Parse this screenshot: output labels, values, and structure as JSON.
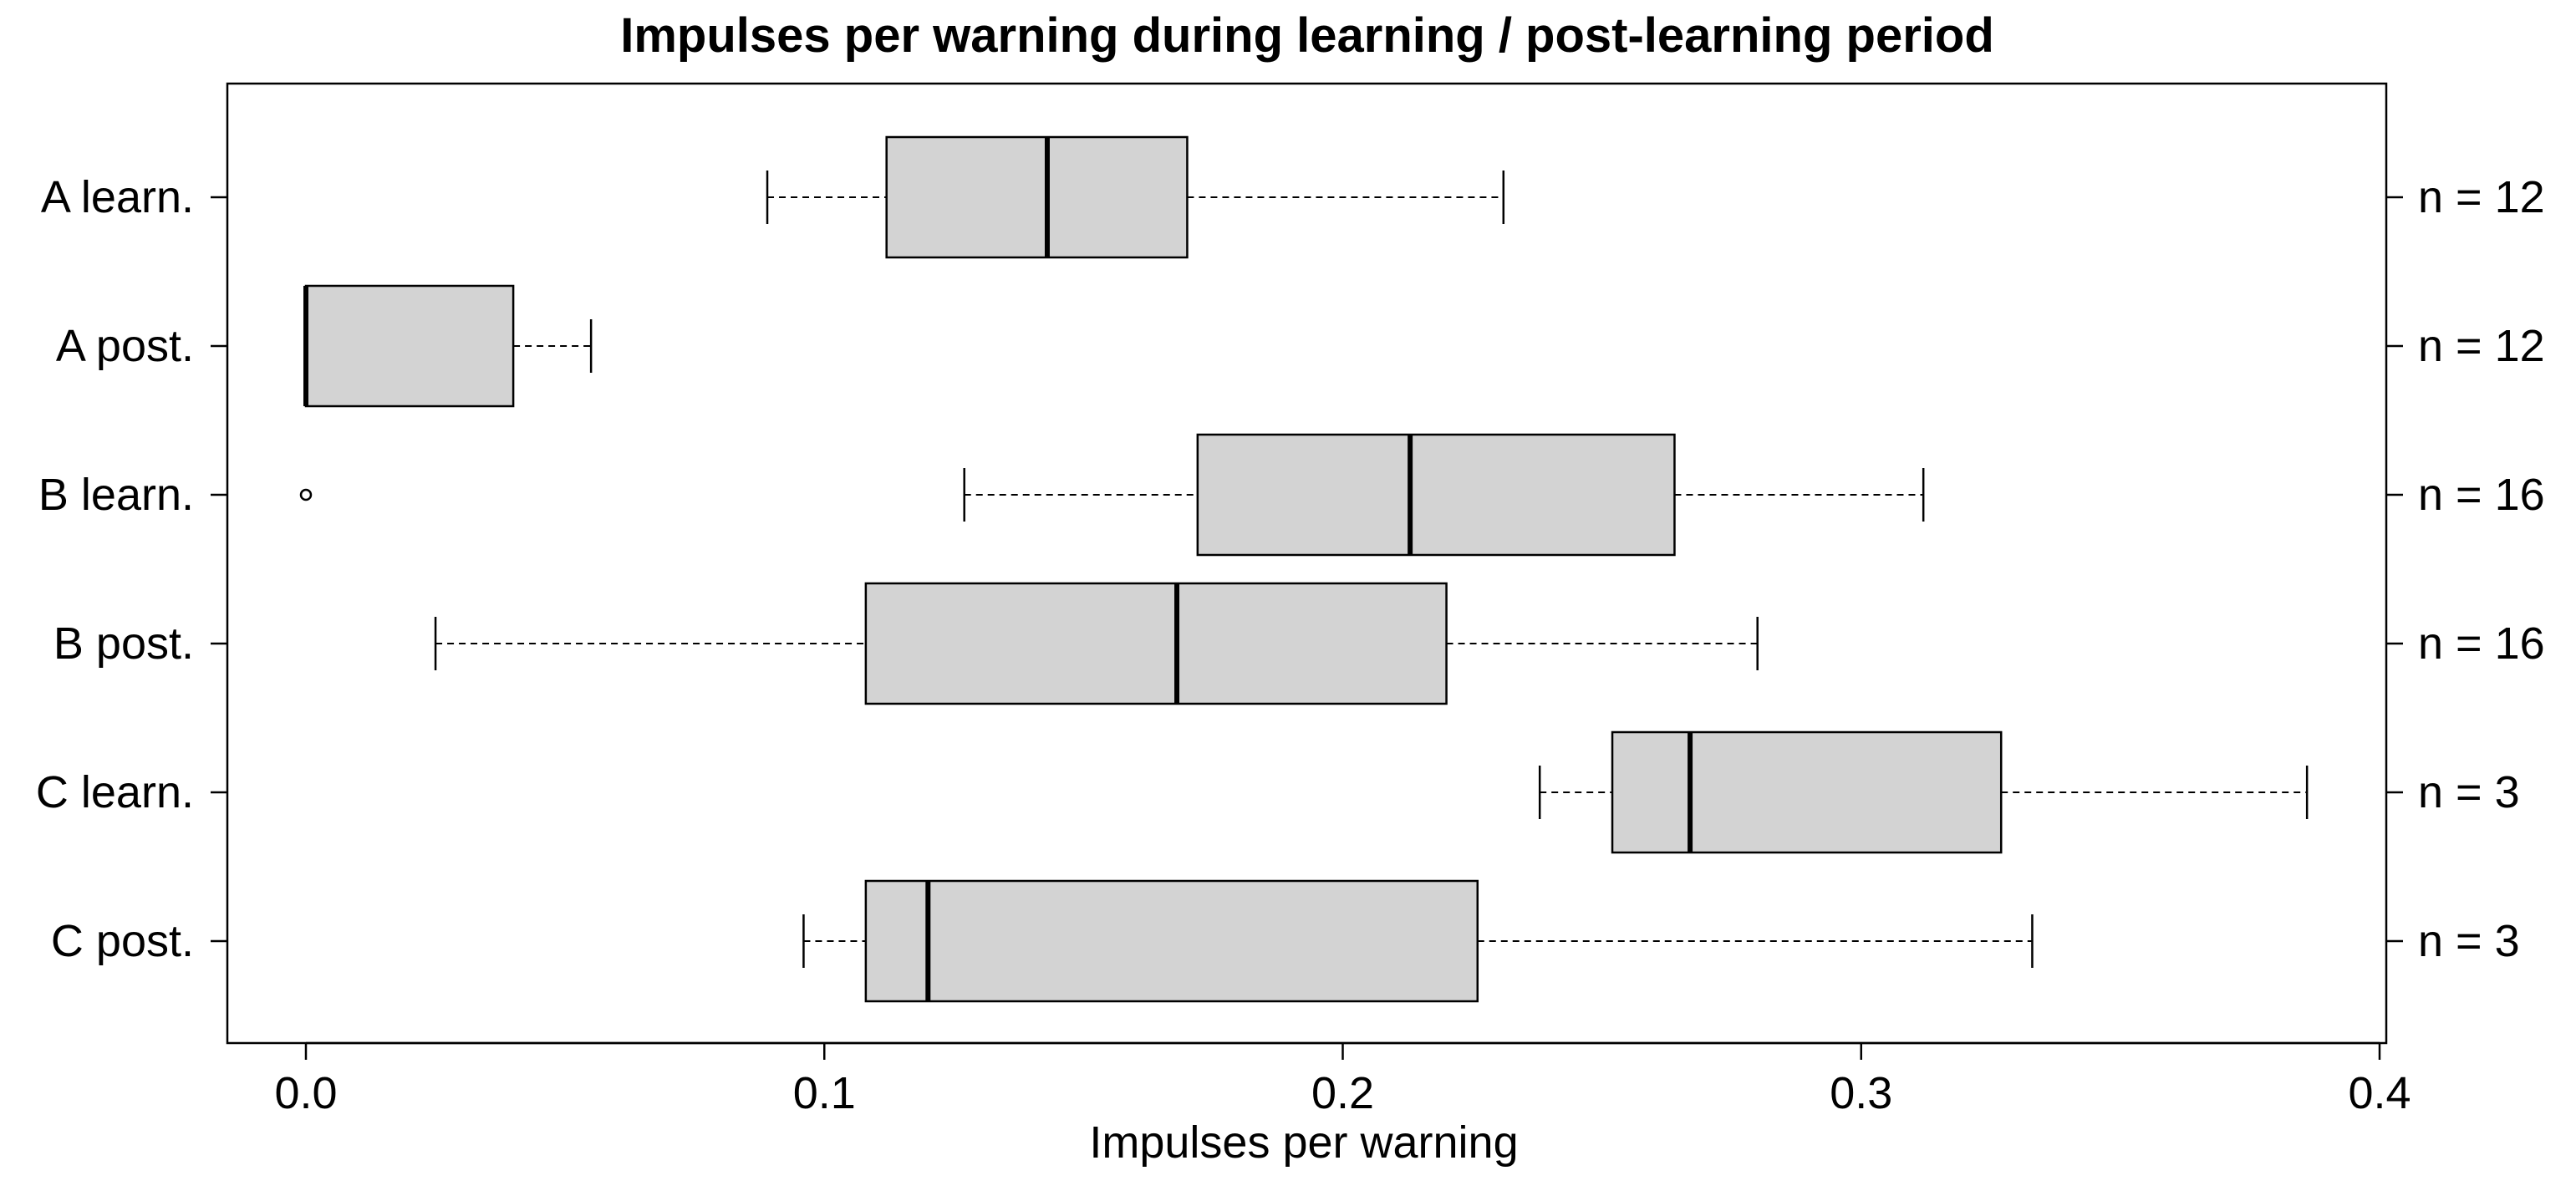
{
  "chart_data": {
    "type": "boxplot",
    "orientation": "horizontal",
    "title": "Impulses per warning during learning / post-learning period",
    "xlabel": "Impulses per warning",
    "ylabel": "",
    "xlim": [
      0.0,
      0.4
    ],
    "x_ticks": [
      0.0,
      0.1,
      0.2,
      0.3,
      0.4
    ],
    "x_tick_labels": [
      "0.0",
      "0.1",
      "0.2",
      "0.3",
      "0.4"
    ],
    "categories": [
      "A learn.",
      "A post.",
      "B learn.",
      "B post.",
      "C learn.",
      "C post."
    ],
    "right_labels": [
      "n = 12",
      "n = 12",
      "n = 16",
      "n = 16",
      "n = 3",
      "n = 3"
    ],
    "boxes": [
      {
        "label": "A learn.",
        "whisker_low": 0.089,
        "q1": 0.112,
        "median": 0.143,
        "q3": 0.17,
        "whisker_high": 0.231,
        "outliers": []
      },
      {
        "label": "A post.",
        "whisker_low": 0.0,
        "q1": 0.0,
        "median": 0.0,
        "q3": 0.04,
        "whisker_high": 0.055,
        "outliers": []
      },
      {
        "label": "B learn.",
        "whisker_low": 0.127,
        "q1": 0.172,
        "median": 0.213,
        "q3": 0.264,
        "whisker_high": 0.312,
        "outliers": [
          0.0
        ]
      },
      {
        "label": "B post.",
        "whisker_low": 0.025,
        "q1": 0.108,
        "median": 0.168,
        "q3": 0.22,
        "whisker_high": 0.28,
        "outliers": []
      },
      {
        "label": "C learn.",
        "whisker_low": 0.238,
        "q1": 0.252,
        "median": 0.267,
        "q3": 0.327,
        "whisker_high": 0.386,
        "outliers": []
      },
      {
        "label": "C post.",
        "whisker_low": 0.096,
        "q1": 0.108,
        "median": 0.12,
        "q3": 0.226,
        "whisker_high": 0.333,
        "outliers": []
      }
    ],
    "colors": {
      "box_fill": "#d3d3d3",
      "stroke": "#000000"
    }
  }
}
